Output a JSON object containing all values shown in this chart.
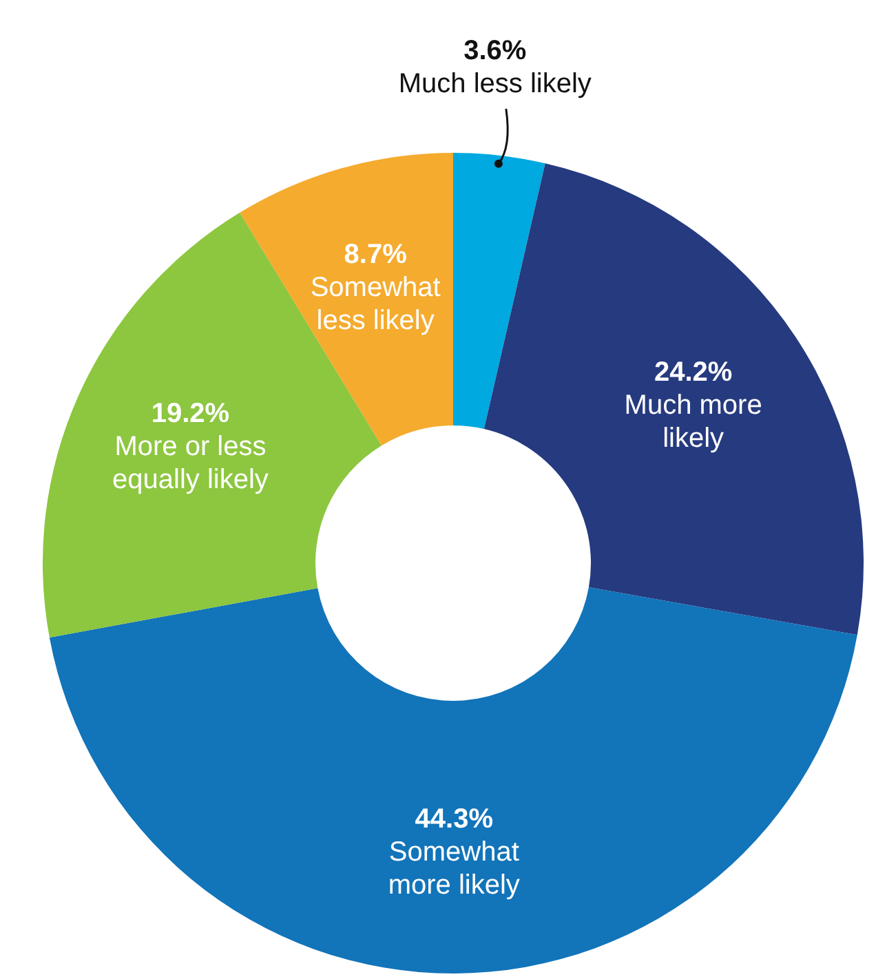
{
  "chart_data": {
    "type": "donut",
    "categories": [
      "Much less likely",
      "Much more likely",
      "Somewhat more likely",
      "More or less equally likely",
      "Somewhat less likely"
    ],
    "values": [
      3.6,
      24.2,
      44.3,
      19.2,
      8.7
    ],
    "colors": [
      "#00a9e0",
      "#263a7f",
      "#1274b9",
      "#8dc63f",
      "#f5ab2e"
    ],
    "value_labels": [
      "3.6%",
      "24.2%",
      "44.3%",
      "19.2%",
      "8.7%"
    ],
    "legend": false
  }
}
